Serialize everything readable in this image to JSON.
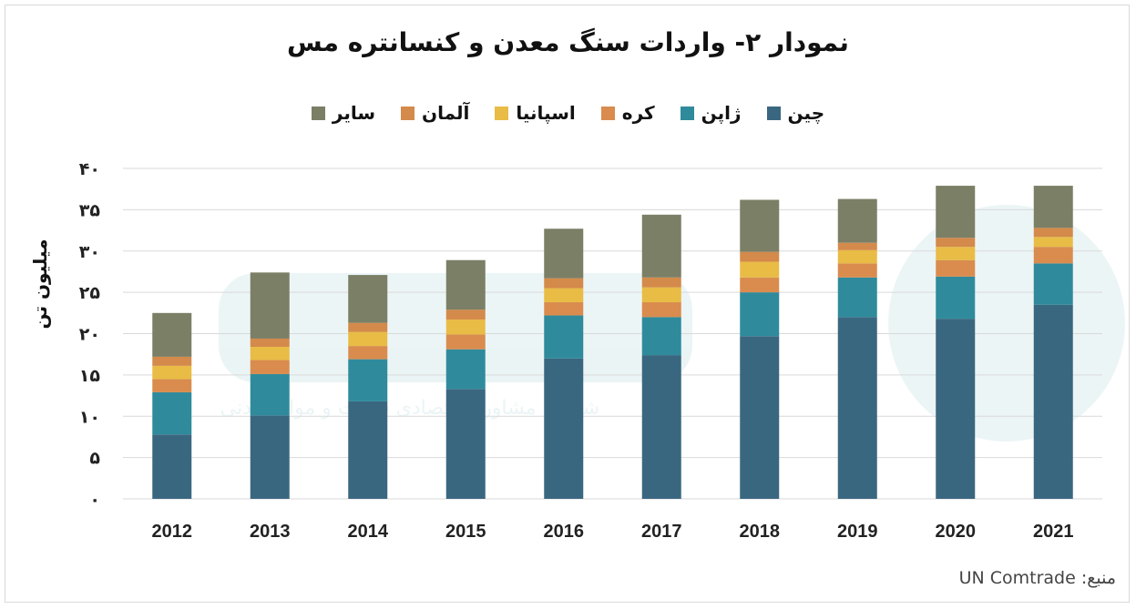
{
  "title": "نمودار ۲- واردات سنگ معدن و کنسانتره مس",
  "source_label": "منبع: UN Comtrade",
  "chart_data": {
    "type": "bar",
    "stacked": true,
    "categories": [
      "2012",
      "2013",
      "2014",
      "2015",
      "2016",
      "2017",
      "2018",
      "2019",
      "2020",
      "2021"
    ],
    "ylabel": "میلیون تن",
    "ylim": [
      0,
      40
    ],
    "yticks": [
      "۰",
      "۵",
      "۱۰",
      "۱۵",
      "۲۰",
      "۲۵",
      "۳۰",
      "۳۵",
      "۴۰"
    ],
    "legend_position": "top",
    "grid": true,
    "series": [
      {
        "name": "چین",
        "color": "#3a6780",
        "values": [
          7.8,
          10.1,
          11.8,
          13.3,
          17.0,
          17.4,
          19.7,
          22.0,
          21.8,
          23.5
        ]
      },
      {
        "name": "ژاپن",
        "color": "#2f8b9c",
        "values": [
          5.1,
          5.0,
          5.1,
          4.8,
          5.2,
          4.6,
          5.3,
          4.8,
          5.1,
          5.0
        ]
      },
      {
        "name": "کره",
        "color": "#d98c4e",
        "values": [
          1.6,
          1.7,
          1.6,
          1.8,
          1.6,
          1.8,
          1.8,
          1.7,
          2.0,
          2.0
        ]
      },
      {
        "name": "اسپانیا",
        "color": "#e8bc45",
        "values": [
          1.6,
          1.6,
          1.7,
          1.8,
          1.7,
          1.8,
          1.9,
          1.6,
          1.6,
          1.2
        ]
      },
      {
        "name": "آلمان",
        "color": "#d48a4a",
        "values": [
          1.1,
          1.0,
          1.1,
          1.2,
          1.2,
          1.2,
          1.2,
          0.9,
          1.1,
          1.1
        ]
      },
      {
        "name": "سایر",
        "color": "#7b7f66",
        "values": [
          5.3,
          8.0,
          5.8,
          6.0,
          6.0,
          7.6,
          6.3,
          5.3,
          6.3,
          5.1
        ]
      }
    ]
  },
  "watermark_text": "شرکت مشاوره اقتصادی فلزات و مواد معدنی"
}
